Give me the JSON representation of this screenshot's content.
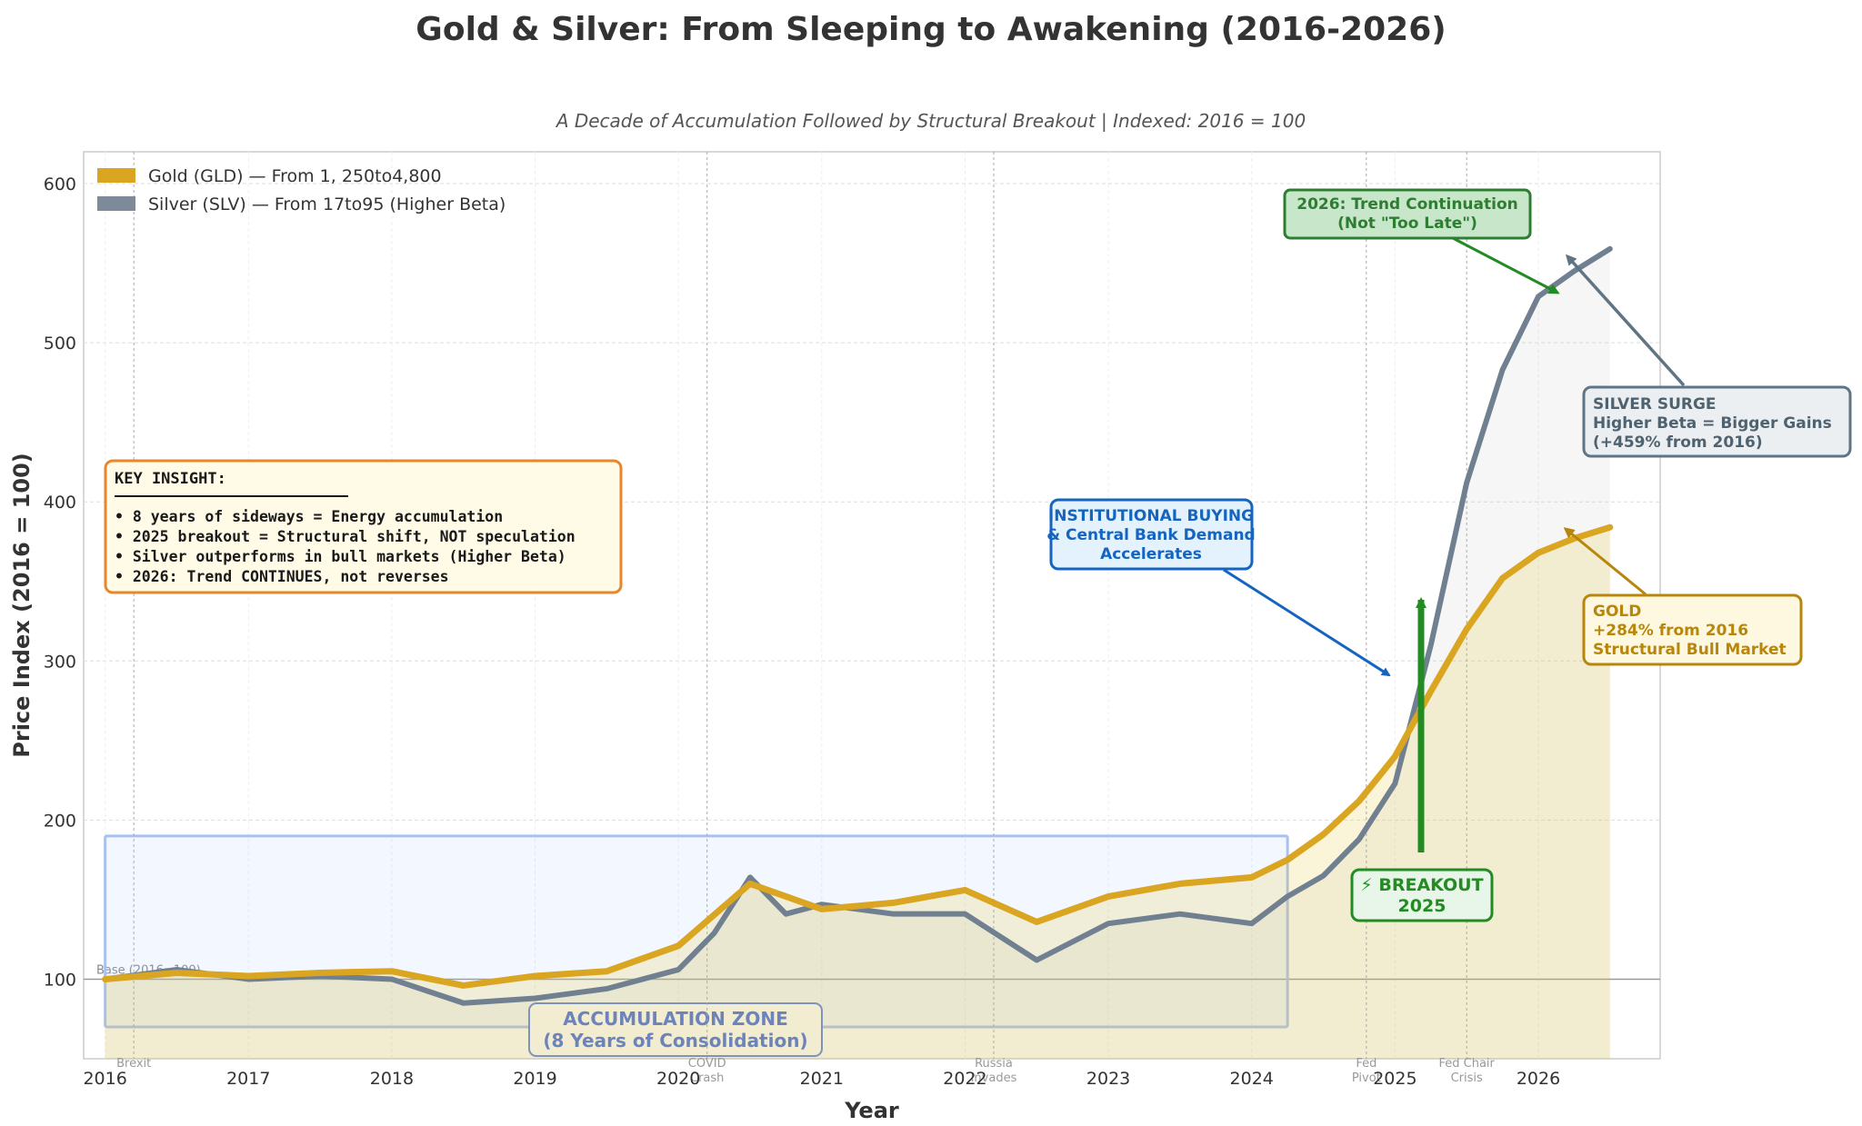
{
  "chart_data": {
    "type": "line",
    "title": "Gold & Silver: From Sleeping to Awakening (2016-2026)",
    "subtitle": "A Decade of Accumulation Followed by Structural Breakout | Indexed: 2016 = 100",
    "xlabel": "Year",
    "ylabel": "Price Index (2016 = 100)",
    "xlim": [
      2015.85,
      2026.85
    ],
    "ylim": [
      50,
      620
    ],
    "x_ticks": [
      "2016",
      "2017",
      "2018",
      "2019",
      "2020",
      "2021",
      "2022",
      "2023",
      "2024",
      "2025",
      "2026"
    ],
    "y_ticks": [
      "100",
      "200",
      "300",
      "400",
      "500",
      "600"
    ],
    "grid": true,
    "legend_position": "top-left",
    "series": [
      {
        "name": "Gold (GLD) — From $1,250 to $4,800",
        "legend_label": "Gold (GLD) — From 1, 250to4,800",
        "color": "#DAA520",
        "x": [
          2016,
          2016.5,
          2017,
          2017.5,
          2018,
          2018.5,
          2019,
          2019.5,
          2020,
          2020.5,
          2021,
          2021.5,
          2022,
          2022.5,
          2023,
          2023.5,
          2024,
          2024.25,
          2024.5,
          2024.75,
          2025,
          2025.25,
          2025.5,
          2025.75,
          2026,
          2026.25,
          2026.5
        ],
        "values": [
          100,
          104,
          102,
          104,
          105,
          96,
          102,
          105,
          121,
          160,
          144,
          148,
          156,
          136,
          152,
          160,
          164,
          175,
          191,
          212,
          240,
          281,
          320,
          352,
          368,
          377,
          384
        ]
      },
      {
        "name": "Silver (SLV) — From $17 to $95 (Higher Beta)",
        "legend_label": "Silver (SLV) — From 17to95 (Higher Beta)",
        "color": "#708090",
        "x": [
          2016,
          2016.5,
          2017,
          2017.5,
          2018,
          2018.5,
          2019,
          2019.5,
          2020,
          2020.25,
          2020.5,
          2020.75,
          2021,
          2021.5,
          2022,
          2022.5,
          2023,
          2023.5,
          2024,
          2024.25,
          2024.5,
          2024.75,
          2025,
          2025.25,
          2025.5,
          2025.75,
          2026,
          2026.25,
          2026.5
        ],
        "values": [
          100,
          106,
          100,
          102,
          100,
          85,
          88,
          94,
          106,
          129,
          164,
          141,
          147,
          141,
          141,
          112,
          135,
          141,
          135,
          152,
          165,
          188,
          223,
          310,
          412,
          483,
          529,
          545,
          559
        ]
      }
    ],
    "accumulation_zone": {
      "x_range": [
        2016,
        2024.25
      ],
      "y_range": [
        70,
        190
      ],
      "label_line1": "ACCUMULATION ZONE",
      "label_line2": "(8 Years of Consolidation)"
    },
    "baseline": {
      "y": 100,
      "label": "Base (2016=100)"
    },
    "events": [
      {
        "x": 2016.2,
        "line1": "Brexit",
        "line2": ""
      },
      {
        "x": 2020.2,
        "line1": "COVID",
        "line2": "Crash"
      },
      {
        "x": 2022.2,
        "line1": "Russia",
        "line2": "Invades"
      },
      {
        "x": 2024.8,
        "line1": "Fed",
        "line2": "Pivot"
      },
      {
        "x": 2025.5,
        "line1": "Fed Chair",
        "line2": "Crisis"
      }
    ],
    "annotations": {
      "key_insight": {
        "title": "KEY INSIGHT:",
        "lines": [
          "• 8 years of sideways = Energy accumulation",
          "• 2025 breakout = Structural shift, NOT speculation",
          "• Silver outperforms in bull markets (Higher Beta)",
          "• 2026: Trend CONTINUES, not reverses"
        ]
      },
      "institutional": {
        "lines": [
          "INSTITUTIONAL BUYING",
          "& Central Bank Demand",
          "Accelerates"
        ]
      },
      "breakout": {
        "line1": "⚡ BREAKOUT",
        "line2": "2025"
      },
      "trend": {
        "lines": [
          "2026: Trend Continuation",
          "(Not \"Too Late\")"
        ]
      },
      "silver_surge": {
        "lines": [
          "SILVER SURGE",
          "Higher Beta = Bigger Gains",
          "(+459% from 2016)"
        ]
      },
      "gold_label": {
        "lines": [
          "GOLD",
          "+284% from 2016",
          "Structural Bull Market"
        ]
      }
    }
  }
}
